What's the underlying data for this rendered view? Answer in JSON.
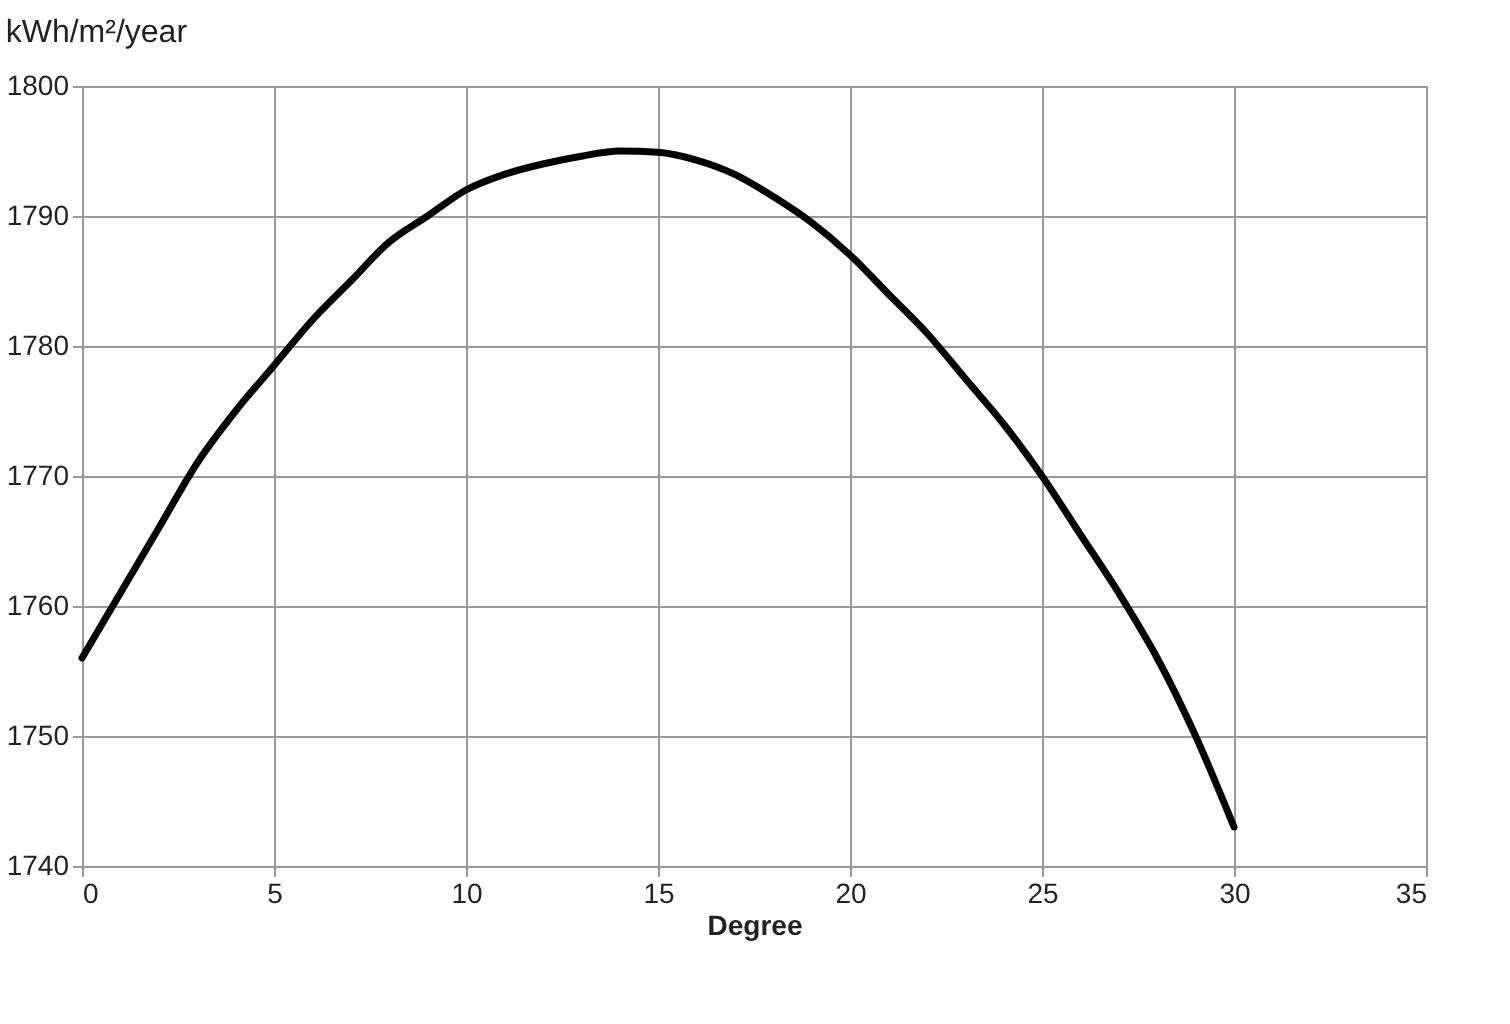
{
  "chart_data": {
    "type": "line",
    "ylabel": "kWh/m²/year",
    "xlabel": "Degree",
    "x": [
      0,
      1,
      2,
      3,
      4,
      5,
      6,
      7,
      8,
      9,
      10,
      11,
      12,
      13,
      14,
      15,
      16,
      17,
      18,
      19,
      20,
      21,
      22,
      23,
      24,
      25,
      26,
      27,
      28,
      29,
      30
    ],
    "series": [
      {
        "color": "#000000",
        "values": [
          1756,
          1761,
          1766,
          1771,
          1775,
          1778.5,
          1782,
          1785,
          1788,
          1790,
          1792,
          1793.2,
          1794,
          1794.6,
          1795,
          1794.9,
          1794.3,
          1793.2,
          1791.5,
          1789.5,
          1787,
          1784,
          1781,
          1777.5,
          1774,
          1770,
          1765.5,
          1761,
          1756,
          1750,
          1743
        ]
      }
    ],
    "xlim": [
      0,
      35
    ],
    "xticks": [
      0,
      5,
      10,
      15,
      20,
      25,
      30,
      35
    ],
    "ylim": [
      1740,
      1800
    ],
    "yticks": [
      1740,
      1750,
      1760,
      1770,
      1780,
      1790,
      1800
    ],
    "grid": true,
    "legend": false,
    "marker": "none",
    "line_style": "solid"
  }
}
